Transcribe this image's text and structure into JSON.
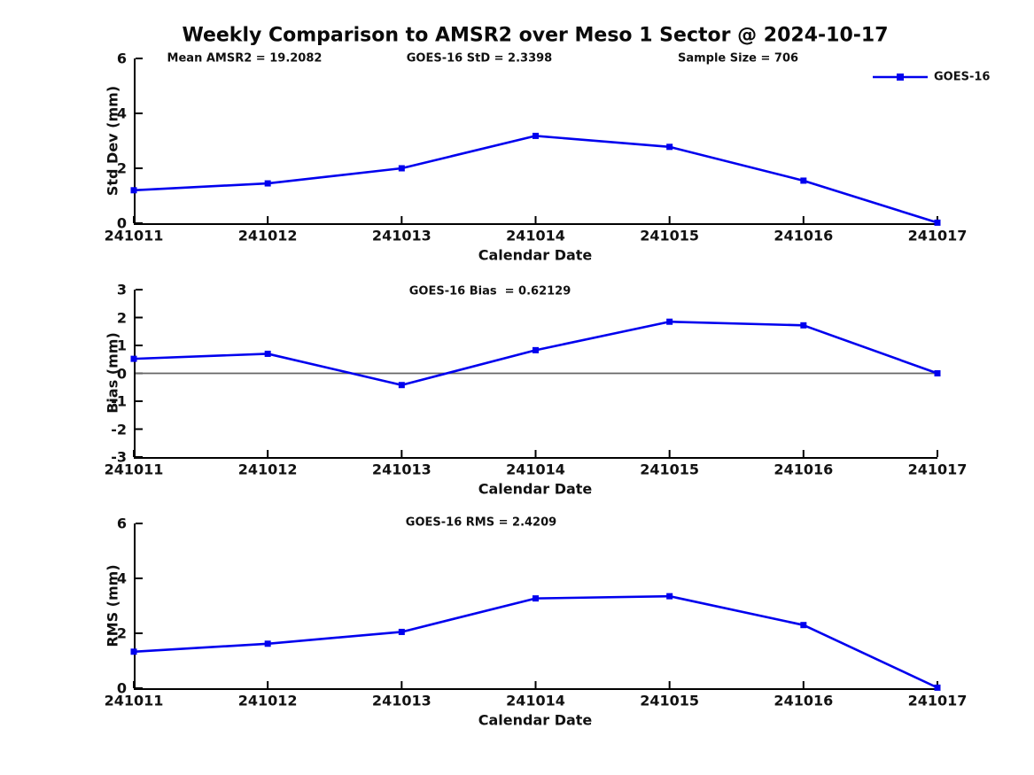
{
  "title": "Weekly Comparison to AMSR2 over Meso 1 Sector @ 2024-10-17",
  "legend": {
    "label": "GOES-16"
  },
  "colors": {
    "series": "#0000EE",
    "axis": "#000000",
    "zero_line": "#666666",
    "text": "#111111"
  },
  "chart_data": [
    {
      "type": "line",
      "subplot": "std-dev",
      "annotations": [
        "Mean AMSR2 = 19.2082",
        "GOES-16 StD = 2.3398",
        "Sample Size = 706"
      ],
      "ylabel": "Std Dev (mm)",
      "xlabel": "Calendar Date",
      "categories": [
        "241011",
        "241012",
        "241013",
        "241014",
        "241015",
        "241016",
        "241017"
      ],
      "series": [
        {
          "name": "GOES-16",
          "values": [
            1.2,
            1.45,
            2.0,
            3.18,
            2.78,
            1.55,
            0.02
          ]
        }
      ],
      "ylim": [
        0,
        6
      ],
      "yticks": [
        0,
        2,
        4,
        6
      ],
      "grid": false,
      "zero_line": false,
      "legend_position": "top-right",
      "marker": "square"
    },
    {
      "type": "line",
      "subplot": "bias",
      "annotations": [
        "GOES-16 Bias  = 0.62129"
      ],
      "ylabel": "Bias (mm)",
      "xlabel": "Calendar Date",
      "categories": [
        "241011",
        "241012",
        "241013",
        "241014",
        "241015",
        "241016",
        "241017"
      ],
      "series": [
        {
          "name": "GOES-16",
          "values": [
            0.52,
            0.7,
            -0.42,
            0.83,
            1.85,
            1.72,
            0.0
          ]
        }
      ],
      "ylim": [
        -3,
        3
      ],
      "yticks": [
        -3,
        -2,
        -1,
        0,
        1,
        2,
        3
      ],
      "grid": false,
      "zero_line": true,
      "legend_position": "none",
      "marker": "square"
    },
    {
      "type": "line",
      "subplot": "rms",
      "annotations": [
        "GOES-16 RMS = 2.4209"
      ],
      "ylabel": "RMS (mm)",
      "xlabel": "Calendar Date",
      "categories": [
        "241011",
        "241012",
        "241013",
        "241014",
        "241015",
        "241016",
        "241017"
      ],
      "series": [
        {
          "name": "GOES-16",
          "values": [
            1.33,
            1.62,
            2.05,
            3.27,
            3.35,
            2.3,
            0.02
          ]
        }
      ],
      "ylim": [
        0,
        6
      ],
      "yticks": [
        0,
        2,
        4,
        6
      ],
      "grid": false,
      "zero_line": false,
      "legend_position": "none",
      "marker": "square"
    }
  ]
}
